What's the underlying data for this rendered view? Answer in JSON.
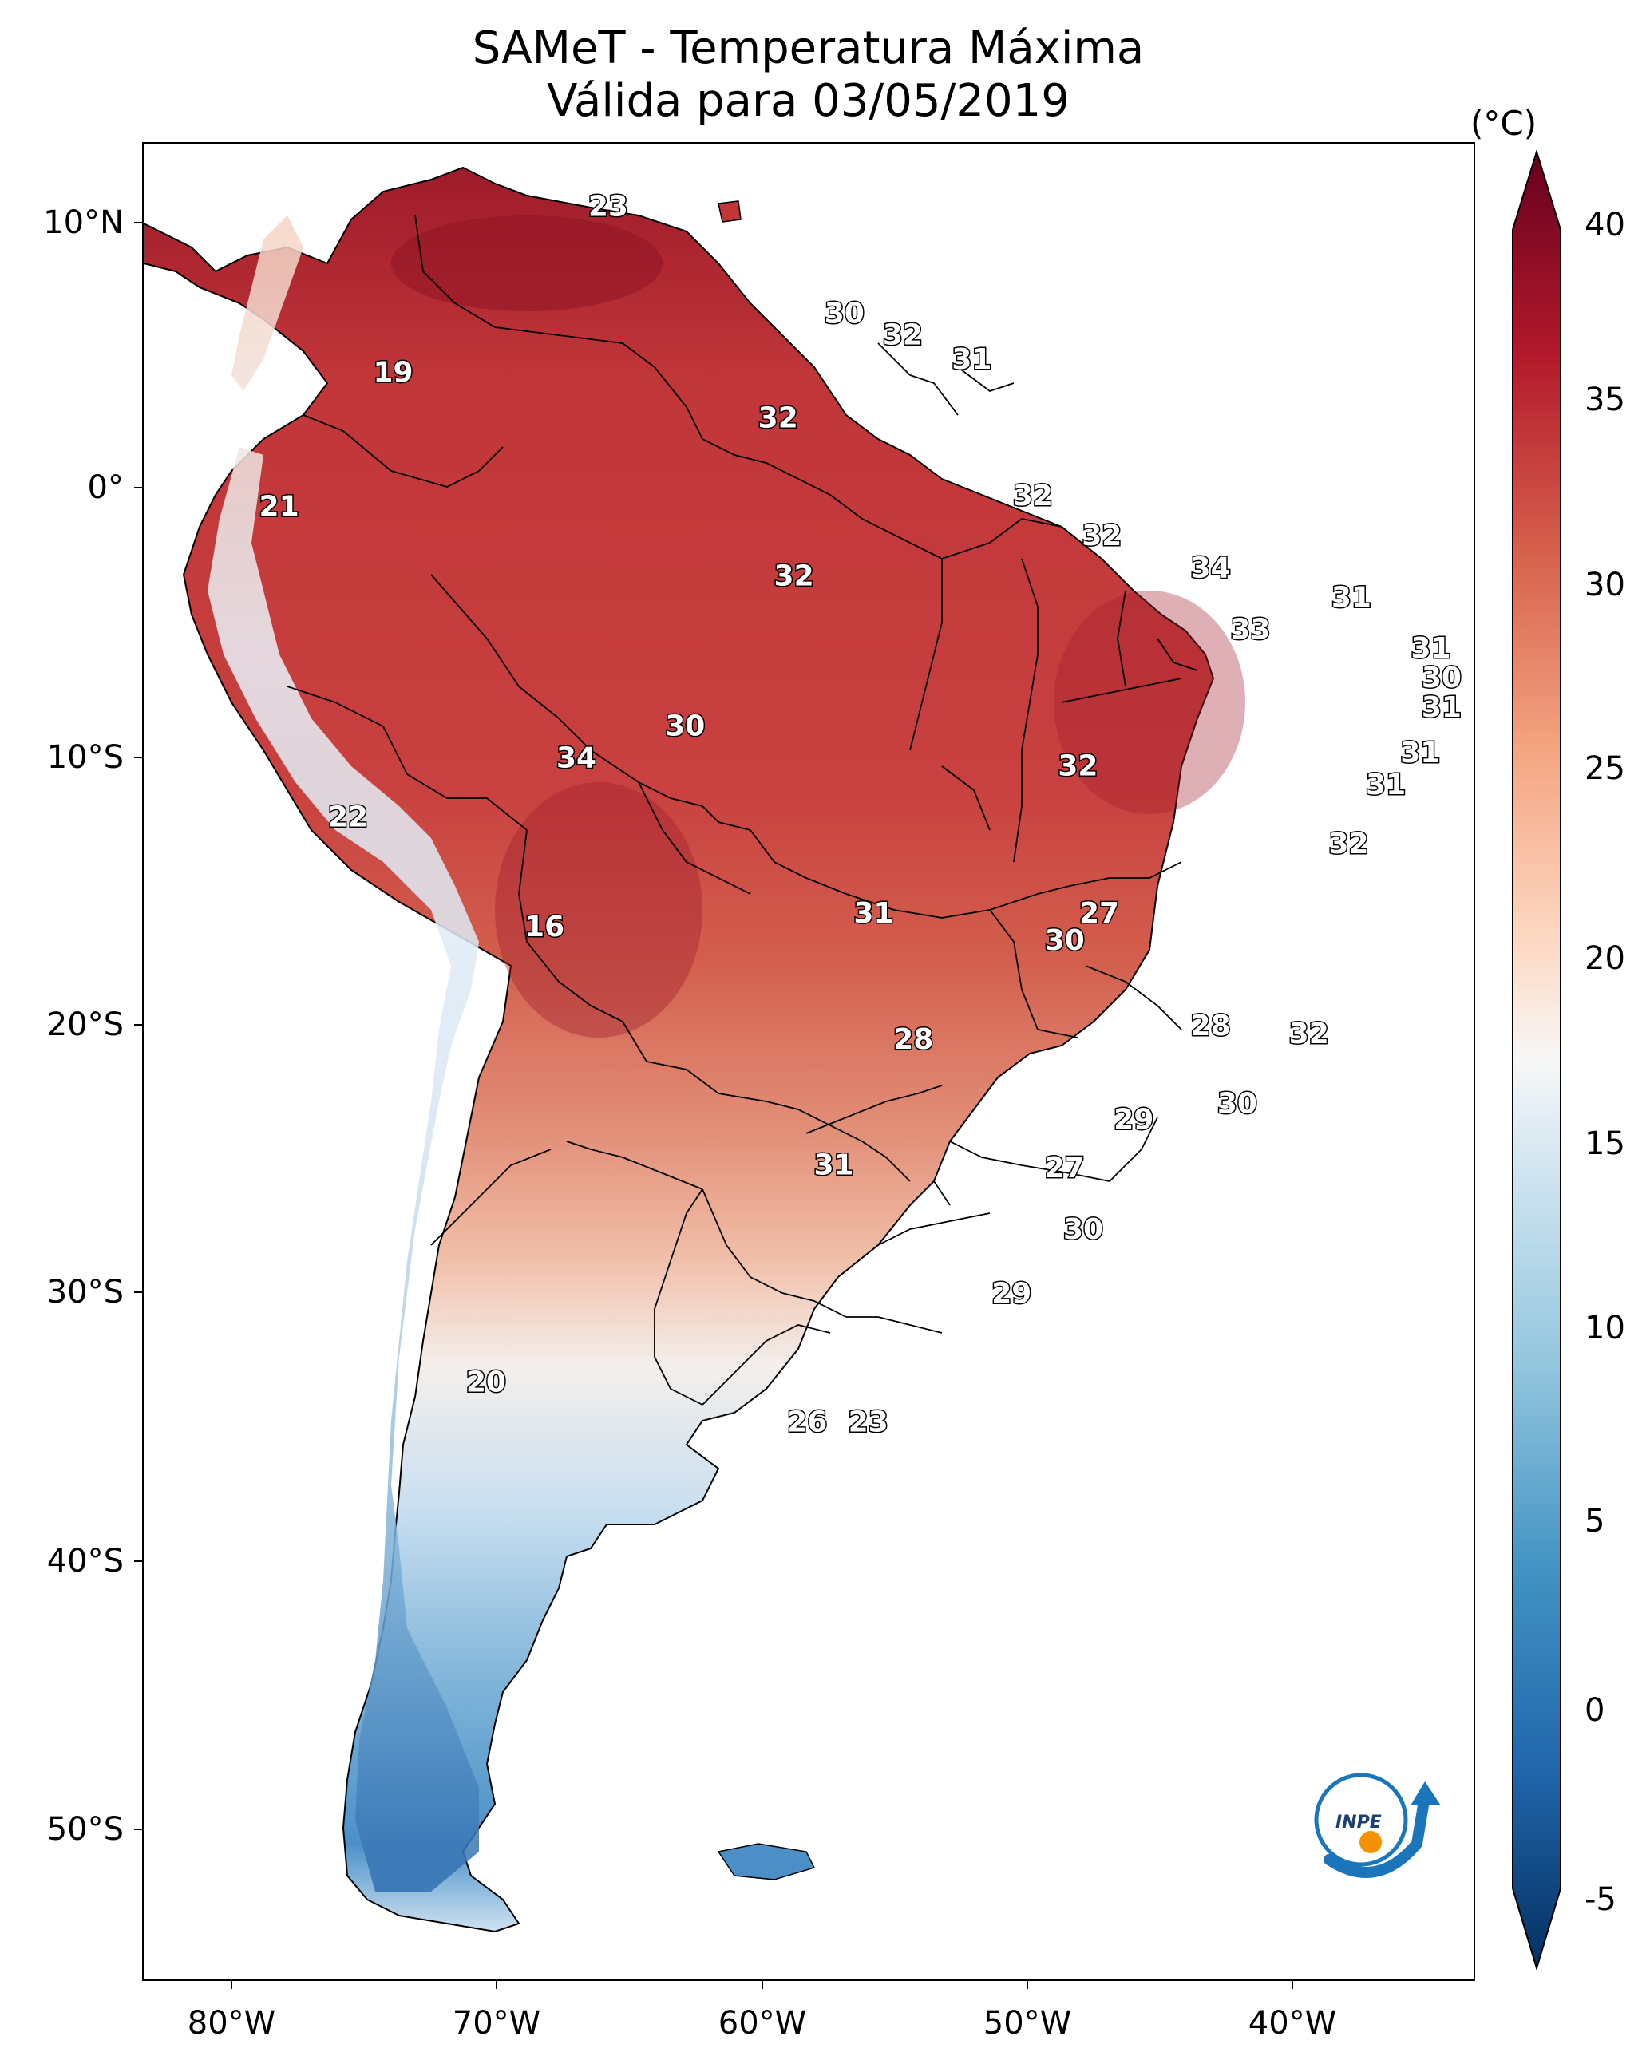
{
  "title": {
    "line1": "SAMeT - Temperatura Máxima",
    "line2": "Válida para 03/05/2019"
  },
  "colorbar": {
    "unit": "(°C)",
    "ticks": [
      "40",
      "35",
      "30",
      "25",
      "20",
      "15",
      "10",
      "5",
      "0",
      "-5"
    ],
    "min": -5,
    "max": 40
  },
  "axes": {
    "lat_labels": [
      "10°N",
      "0°",
      "10°S",
      "20°S",
      "30°S",
      "40°S",
      "50°S"
    ],
    "lon_labels": [
      "80°W",
      "70°W",
      "60°W",
      "50°W",
      "40°W"
    ]
  },
  "contour_labels": [
    {
      "text": "23",
      "lon": -65.8,
      "lat": 10.6
    },
    {
      "text": "30",
      "lon": -56.9,
      "lat": 6.6
    },
    {
      "text": "32",
      "lon": -54.7,
      "lat": 5.8
    },
    {
      "text": "31",
      "lon": -52.1,
      "lat": 4.9
    },
    {
      "text": "19",
      "lon": -73.9,
      "lat": 4.4
    },
    {
      "text": "32",
      "lon": -59.4,
      "lat": 2.7
    },
    {
      "text": "32",
      "lon": -49.8,
      "lat": -0.2
    },
    {
      "text": "21",
      "lon": -78.2,
      "lat": -0.6
    },
    {
      "text": "32",
      "lon": -47.2,
      "lat": -1.7
    },
    {
      "text": "34",
      "lon": -43.1,
      "lat": -2.9
    },
    {
      "text": "32",
      "lon": -58.8,
      "lat": -3.2
    },
    {
      "text": "31",
      "lon": -37.8,
      "lat": -4.0
    },
    {
      "text": "33",
      "lon": -41.6,
      "lat": -5.2
    },
    {
      "text": "31",
      "lon": -34.8,
      "lat": -5.9
    },
    {
      "text": "30",
      "lon": -34.4,
      "lat": -7.0
    },
    {
      "text": "31",
      "lon": -34.4,
      "lat": -8.1
    },
    {
      "text": "30",
      "lon": -62.9,
      "lat": -8.8
    },
    {
      "text": "31",
      "lon": -35.2,
      "lat": -9.8
    },
    {
      "text": "34",
      "lon": -67.0,
      "lat": -10.0
    },
    {
      "text": "32",
      "lon": -48.1,
      "lat": -10.3
    },
    {
      "text": "31",
      "lon": -36.5,
      "lat": -11.0
    },
    {
      "text": "22",
      "lon": -75.6,
      "lat": -12.2
    },
    {
      "text": "32",
      "lon": -37.9,
      "lat": -13.2
    },
    {
      "text": "31",
      "lon": -55.8,
      "lat": -15.8
    },
    {
      "text": "27",
      "lon": -47.3,
      "lat": -15.8
    },
    {
      "text": "16",
      "lon": -68.2,
      "lat": -16.3
    },
    {
      "text": "30",
      "lon": -48.6,
      "lat": -16.8
    },
    {
      "text": "28",
      "lon": -43.1,
      "lat": -20.0
    },
    {
      "text": "32",
      "lon": -39.4,
      "lat": -20.3
    },
    {
      "text": "28",
      "lon": -54.3,
      "lat": -20.5
    },
    {
      "text": "30",
      "lon": -42.1,
      "lat": -22.9
    },
    {
      "text": "29",
      "lon": -46.0,
      "lat": -23.5
    },
    {
      "text": "31",
      "lon": -57.3,
      "lat": -25.2
    },
    {
      "text": "27",
      "lon": -48.6,
      "lat": -25.3
    },
    {
      "text": "30",
      "lon": -47.9,
      "lat": -27.6
    },
    {
      "text": "29",
      "lon": -50.6,
      "lat": -30.0
    },
    {
      "text": "20",
      "lon": -70.4,
      "lat": -33.3
    },
    {
      "text": "26",
      "lon": -58.3,
      "lat": -34.8
    },
    {
      "text": "23",
      "lon": -56.0,
      "lat": -34.8
    }
  ]
}
